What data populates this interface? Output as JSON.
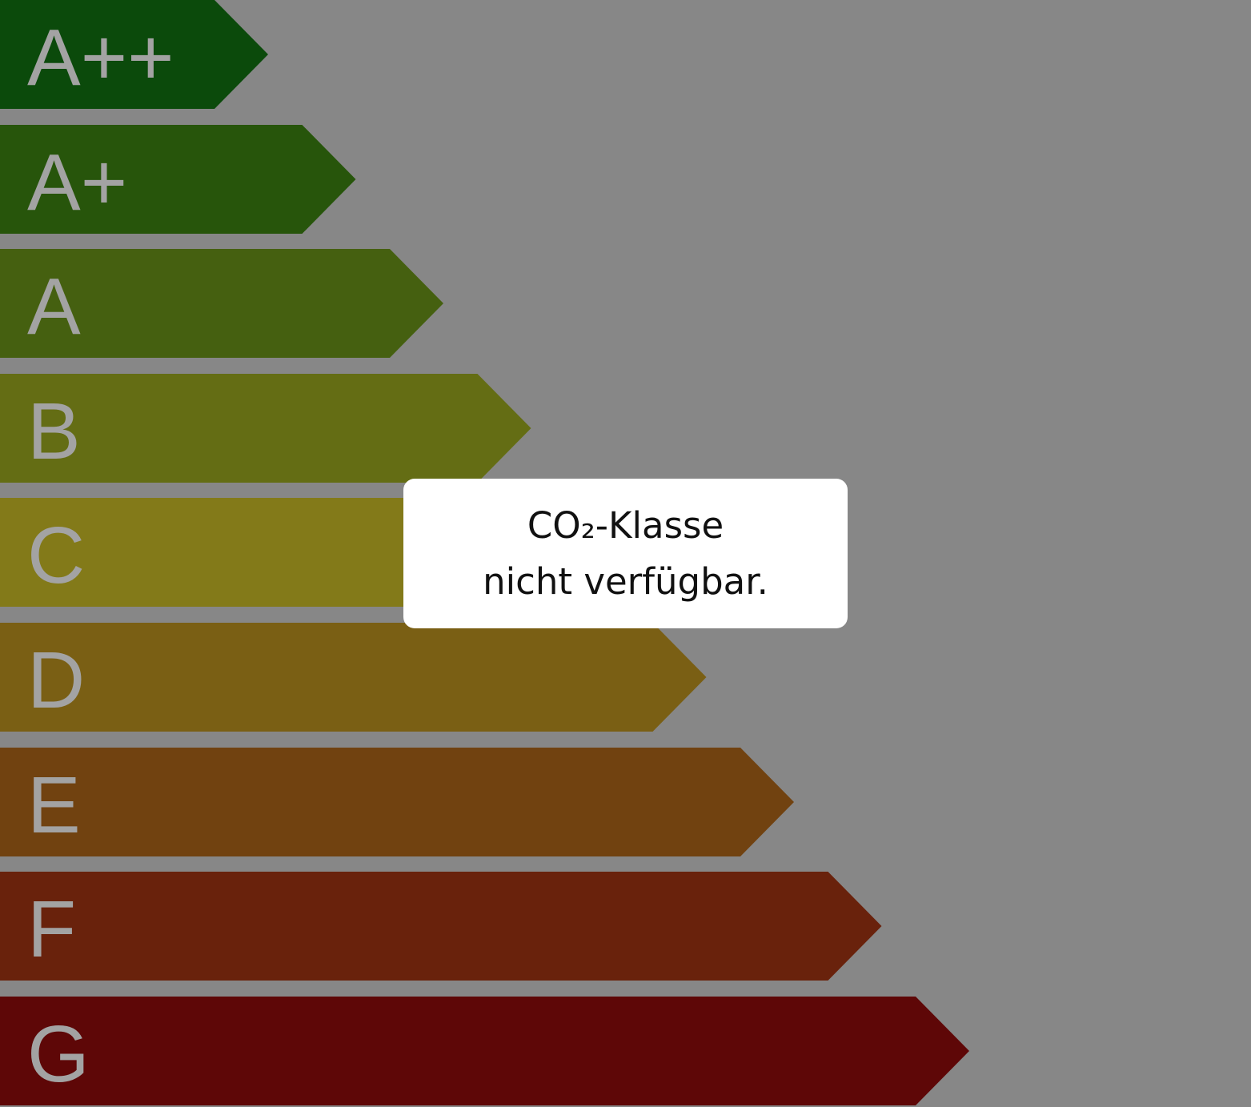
{
  "background_color": "#878787",
  "classes": [
    {
      "label": "A++",
      "color": "#0b4a0b"
    },
    {
      "label": "A+",
      "color": "#27550b"
    },
    {
      "label": "A",
      "color": "#456010"
    },
    {
      "label": "B",
      "color": "#646d14"
    },
    {
      "label": "C",
      "color": "#837a19"
    },
    {
      "label": "D",
      "color": "#7a5f14"
    },
    {
      "label": "E",
      "color": "#714210"
    },
    {
      "label": "F",
      "color": "#69220c"
    },
    {
      "label": "G",
      "color": "#5e0707"
    }
  ],
  "message": {
    "line1": "CO₂-Klasse",
    "line2": "nicht verfügbar."
  }
}
